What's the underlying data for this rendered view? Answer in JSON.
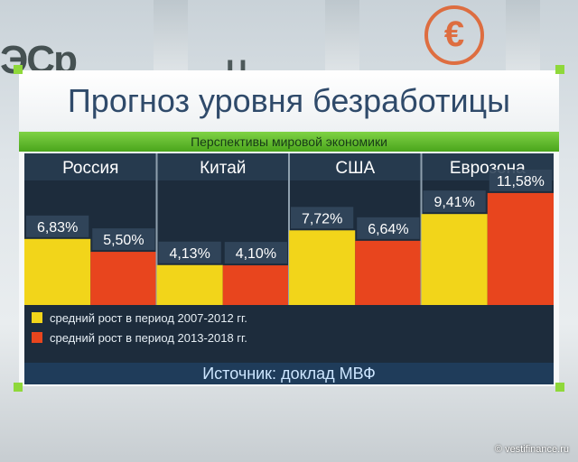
{
  "title": "Прогноз уровня безработицы",
  "subtitle": "Перспективы мировой экономики",
  "source": "Источник: доклад МВФ",
  "copyright": "© vestifinance.ru",
  "colors": {
    "yellow": "#f2d51a",
    "red": "#e8451e",
    "panel": "#1d2c3c",
    "green": "#56b321"
  },
  "chart_data": {
    "type": "bar",
    "categories": [
      "Россия",
      "Китай",
      "США",
      "Еврозона"
    ],
    "series": [
      {
        "name": "средний рост в период 2007-2012 гг.",
        "values": [
          6.83,
          4.13,
          7.72,
          9.41
        ],
        "labels": [
          "6,83%",
          "4,13%",
          "7,72%",
          "9,41%"
        ]
      },
      {
        "name": "средний рост в период 2013-2018 гг.",
        "values": [
          5.5,
          4.1,
          6.64,
          11.58
        ],
        "labels": [
          "5,50%",
          "4,10%",
          "6,64%",
          "11,58%"
        ]
      }
    ],
    "title": "Прогноз уровня безработицы",
    "subtitle": "Перспективы мировой экономики",
    "ylim": [
      0,
      14
    ],
    "grid": false,
    "legend_position": "bottom-left"
  }
}
